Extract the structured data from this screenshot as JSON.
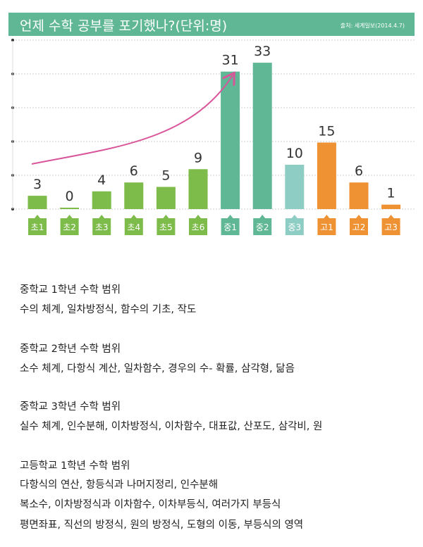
{
  "header": {
    "title": "언제 수학 공부를 포기했나?(단위:명)",
    "source": "출처: 세계일보(2014.4.7)"
  },
  "chart_data": {
    "type": "bar",
    "title": "언제 수학 공부를 포기했나?(단위:명)",
    "categories": [
      "초1",
      "초2",
      "초3",
      "초4",
      "초5",
      "초6",
      "중1",
      "중2",
      "중3",
      "고1",
      "고2",
      "고3"
    ],
    "values": [
      3,
      0,
      4,
      6,
      5,
      9,
      31,
      33,
      10,
      15,
      6,
      1
    ],
    "colors": [
      "#7dbb4a",
      "#7dbb4a",
      "#7dbb4a",
      "#7dbb4a",
      "#7dbb4a",
      "#7dbb4a",
      "#5fb796",
      "#5fb796",
      "#8ecdc4",
      "#ee9233",
      "#ee9233",
      "#ee9233"
    ],
    "grid": true
  },
  "text": [
    {
      "heading": "중학교 1학년 수학 범위",
      "lines": [
        "수의 체계, 일차방정식, 함수의 기초, 작도"
      ]
    },
    {
      "heading": "중학교 2학년 수학 범위",
      "lines": [
        "소수 체계, 다항식 계산, 일차함수, 경우의 수- 확률, 삼각형, 닮음"
      ]
    },
    {
      "heading": "중학교 3학년 수학 범위",
      "lines": [
        "실수 체계, 인수분해, 이차방정식, 이차함수, 대표값, 산포도, 삼각비, 원"
      ]
    },
    {
      "heading": "고등학교 1학년 수학 범위",
      "lines": [
        "다항식의 연산, 항등식과 나머지정리, 인수분해",
        "복소수, 이차방정식과 이차함수, 이차부등식, 여러가지 부등식",
        "평면좌표, 직선의 방정식, 원의 방정식, 도형의 이동, 부등식의 영역"
      ]
    }
  ]
}
